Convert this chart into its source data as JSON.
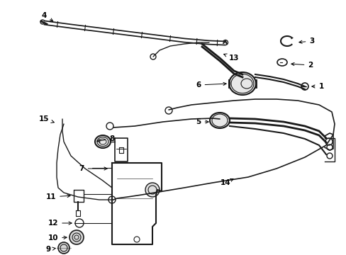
{
  "bg_color": "#ffffff",
  "line_color": "#1a1a1a",
  "fig_width": 4.89,
  "fig_height": 3.6,
  "dpi": 100,
  "wiper_blade": {
    "x": [
      0.245,
      0.31,
      0.375,
      0.44,
      0.5,
      0.555,
      0.6,
      0.635,
      0.66,
      0.685
    ],
    "y": [
      0.878,
      0.862,
      0.848,
      0.836,
      0.828,
      0.822,
      0.82,
      0.82,
      0.82,
      0.82
    ],
    "lw": 4.0
  },
  "label_font": 7.5,
  "arrow_lw": 0.7
}
